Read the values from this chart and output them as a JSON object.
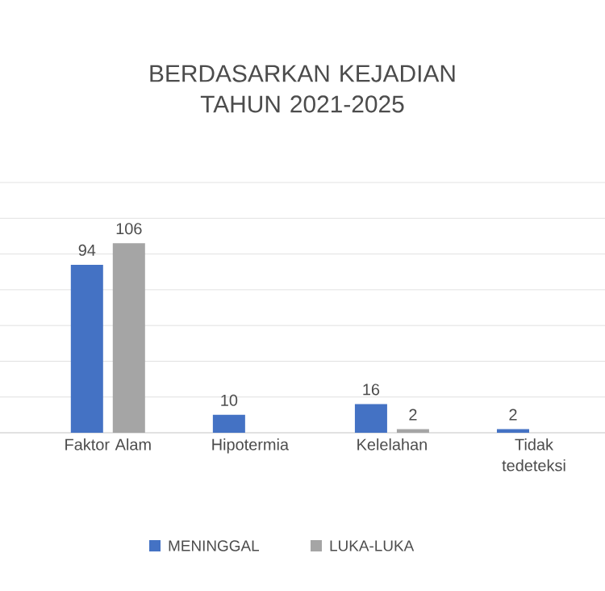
{
  "chart_data": {
    "type": "bar",
    "title": "BERDASARKAN KEJADIAN TAHUN 2021-2025",
    "categories": [
      "Faktor Alam",
      "Hipotermia",
      "Kelelahan",
      "Tidak tedeteksi"
    ],
    "series": [
      {
        "name": "MENINGGAL",
        "color": "#4472c4",
        "values": [
          94,
          10,
          16,
          2
        ]
      },
      {
        "name": "LUKA-LUKA",
        "color": "#a5a5a5",
        "values": [
          106,
          null,
          2,
          null
        ]
      }
    ],
    "tick_labels": "x",
    "grid": "y",
    "data_labels": true,
    "legend": "bottom"
  }
}
